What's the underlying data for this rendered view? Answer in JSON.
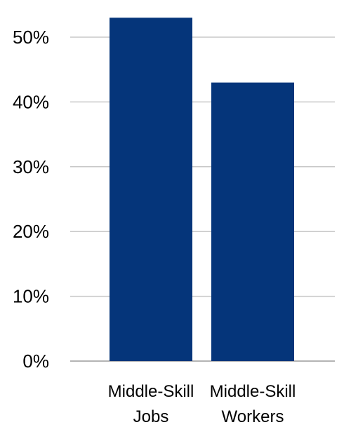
{
  "chart_data": {
    "type": "bar",
    "title": "",
    "xlabel": "",
    "ylabel": "",
    "categories": [
      [
        "Middle-Skill",
        "Jobs"
      ],
      [
        "Middle-Skill",
        "Workers"
      ]
    ],
    "values": [
      53,
      43
    ],
    "ylim": [
      0,
      50
    ],
    "yticks": [
      0,
      10,
      20,
      30,
      40,
      50
    ],
    "ytick_labels": [
      "0%",
      "10%",
      "20%",
      "30%",
      "40%",
      "50%"
    ],
    "bar_color": "#05357A",
    "grid": true,
    "legend": "none"
  }
}
